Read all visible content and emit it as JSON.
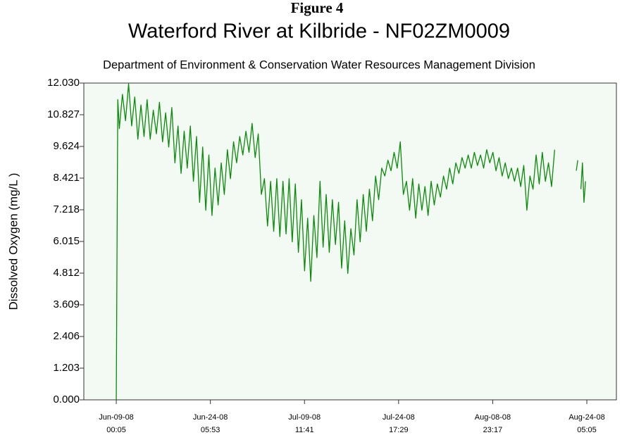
{
  "chart_data": {
    "type": "line",
    "figure_label": "Figure 4",
    "title": "Waterford River at Kilbride - NF02ZM0009",
    "subtitle": "Department of Environment & Conservation Water Resources Management Division",
    "y_label": "Dissolved Oxygen (mg/L )",
    "xlim": [
      "2008-06-03T18:00",
      "2008-08-29T00:00"
    ],
    "xticks": [
      {
        "value": "2008-06-09T00:05",
        "label": [
          "Jun-09-08",
          "00:05"
        ]
      },
      {
        "value": "2008-06-24T05:53",
        "label": [
          "Jun-24-08",
          "05:53"
        ]
      },
      {
        "value": "2008-07-09T11:41",
        "label": [
          "Jul-09-08",
          "11:41"
        ]
      },
      {
        "value": "2008-07-24T17:29",
        "label": [
          "Jul-24-08",
          "17:29"
        ]
      },
      {
        "value": "2008-08-08T23:17",
        "label": [
          "Aug-08-08",
          "23:17"
        ]
      },
      {
        "value": "2008-08-24T05:05",
        "label": [
          "Aug-24-08",
          "05:05"
        ]
      }
    ],
    "ylim": [
      0,
      12.03
    ],
    "yticks": [
      {
        "value": 0,
        "label": "0.000"
      },
      {
        "value": 1.203,
        "label": "1.203"
      },
      {
        "value": 2.406,
        "label": "2.406"
      },
      {
        "value": 3.609,
        "label": "3.609"
      },
      {
        "value": 4.812,
        "label": "4.812"
      },
      {
        "value": 6.015,
        "label": "6.015"
      },
      {
        "value": 7.218,
        "label": "7.218"
      },
      {
        "value": 8.421,
        "label": "8.421"
      },
      {
        "value": 9.624,
        "label": "9.624"
      },
      {
        "value": 10.827,
        "label": "10.827"
      },
      {
        "value": 12.03,
        "label": "12.030"
      }
    ],
    "x": [
      "2008-06-09T00:05",
      "2008-06-09T06:00",
      "2008-06-09T12:00",
      "2008-06-10T00:00",
      "2008-06-10T12:00",
      "2008-06-11T00:00",
      "2008-06-11T12:00",
      "2008-06-12T00:00",
      "2008-06-12T12:00",
      "2008-06-13T00:00",
      "2008-06-13T12:00",
      "2008-06-14T00:00",
      "2008-06-14T12:00",
      "2008-06-15T00:00",
      "2008-06-15T12:00",
      "2008-06-16T00:00",
      "2008-06-16T12:00",
      "2008-06-17T00:00",
      "2008-06-17T12:00",
      "2008-06-18T00:00",
      "2008-06-18T12:00",
      "2008-06-19T00:00",
      "2008-06-19T12:00",
      "2008-06-20T00:00",
      "2008-06-20T12:00",
      "2008-06-21T00:00",
      "2008-06-21T12:00",
      "2008-06-22T00:00",
      "2008-06-22T12:00",
      "2008-06-23T00:00",
      "2008-06-23T12:00",
      "2008-06-24T00:00",
      "2008-06-24T12:00",
      "2008-06-25T00:00",
      "2008-06-25T12:00",
      "2008-06-26T00:00",
      "2008-06-26T12:00",
      "2008-06-27T00:00",
      "2008-06-27T12:00",
      "2008-06-28T00:00",
      "2008-06-28T12:00",
      "2008-06-29T00:00",
      "2008-06-29T12:00",
      "2008-06-30T00:00",
      "2008-06-30T12:00",
      "2008-07-01T00:00",
      "2008-07-01T12:00",
      "2008-07-02T00:00",
      "2008-07-02T12:00",
      "2008-07-03T00:00",
      "2008-07-03T12:00",
      "2008-07-04T00:00",
      "2008-07-04T12:00",
      "2008-07-05T00:00",
      "2008-07-05T12:00",
      "2008-07-06T00:00",
      "2008-07-06T12:00",
      "2008-07-07T00:00",
      "2008-07-07T12:00",
      "2008-07-08T00:00",
      "2008-07-08T12:00",
      "2008-07-09T00:00",
      "2008-07-09T12:00",
      "2008-07-10T00:00",
      "2008-07-10T12:00",
      "2008-07-11T00:00",
      "2008-07-11T12:00",
      "2008-07-12T00:00",
      "2008-07-12T12:00",
      "2008-07-13T00:00",
      "2008-07-13T12:00",
      "2008-07-14T00:00",
      "2008-07-14T12:00",
      "2008-07-15T00:00",
      "2008-07-15T12:00",
      "2008-07-16T00:00",
      "2008-07-16T12:00",
      "2008-07-17T00:00",
      "2008-07-17T12:00",
      "2008-07-18T00:00",
      "2008-07-18T12:00",
      "2008-07-19T00:00",
      "2008-07-19T12:00",
      "2008-07-20T00:00",
      "2008-07-20T12:00",
      "2008-07-21T00:00",
      "2008-07-21T12:00",
      "2008-07-22T00:00",
      "2008-07-22T12:00",
      "2008-07-23T00:00",
      "2008-07-23T12:00",
      "2008-07-24T00:00",
      "2008-07-24T12:00",
      "2008-07-25T00:00",
      "2008-07-25T12:00",
      "2008-07-26T00:00",
      "2008-07-26T12:00",
      "2008-07-27T00:00",
      "2008-07-27T12:00",
      "2008-07-28T00:00",
      "2008-07-28T12:00",
      "2008-07-29T00:00",
      "2008-07-29T12:00",
      "2008-07-30T00:00",
      "2008-07-30T12:00",
      "2008-07-31T00:00",
      "2008-07-31T12:00",
      "2008-08-01T00:00",
      "2008-08-01T12:00",
      "2008-08-02T00:00",
      "2008-08-02T12:00",
      "2008-08-03T00:00",
      "2008-08-03T12:00",
      "2008-08-04T00:00",
      "2008-08-04T12:00",
      "2008-08-05T00:00",
      "2008-08-05T12:00",
      "2008-08-06T00:00",
      "2008-08-06T12:00",
      "2008-08-07T00:00",
      "2008-08-07T12:00",
      "2008-08-08T00:00",
      "2008-08-08T12:00",
      "2008-08-09T00:00",
      "2008-08-09T12:00",
      "2008-08-10T00:00",
      "2008-08-10T12:00",
      "2008-08-11T00:00",
      "2008-08-11T12:00",
      "2008-08-12T00:00",
      "2008-08-12T12:00",
      "2008-08-13T00:00",
      "2008-08-13T12:00",
      "2008-08-14T00:00",
      "2008-08-14T12:00",
      "2008-08-15T00:00",
      "2008-08-15T12:00",
      "2008-08-16T00:00",
      "2008-08-16T12:00",
      "2008-08-17T00:00",
      "2008-08-17T12:00",
      "2008-08-18T00:00",
      "2008-08-18T12:00",
      "2008-08-19T00:00",
      "2008-08-19T12:00",
      "2008-08-22T12:00",
      "2008-08-22T18:00",
      "2008-08-23T00:00",
      "2008-08-23T06:00",
      "2008-08-23T12:00",
      "2008-08-23T18:00",
      "2008-08-24T00:00"
    ],
    "series": [
      {
        "name": "Dissolved Oxygen",
        "color": "#0a8a0a",
        "values": [
          0,
          11.4,
          10.3,
          11.6,
          10.6,
          12.0,
          10.4,
          11.5,
          9.9,
          11.2,
          10.0,
          11.4,
          9.9,
          11.0,
          10.1,
          11.3,
          9.8,
          10.9,
          9.6,
          11.1,
          9.0,
          10.4,
          8.6,
          10.2,
          8.8,
          10.4,
          8.3,
          10.0,
          7.5,
          9.6,
          7.2,
          9.3,
          7.0,
          8.8,
          7.4,
          9.0,
          7.8,
          9.5,
          8.4,
          9.8,
          9.0,
          10.0,
          9.3,
          10.2,
          9.4,
          10.5,
          9.2,
          10.1,
          7.8,
          8.4,
          6.6,
          8.3,
          6.4,
          8.4,
          6.2,
          8.3,
          6.3,
          8.4,
          6.0,
          8.2,
          5.6,
          7.6,
          4.9,
          6.9,
          4.5,
          7.0,
          5.4,
          8.3,
          5.8,
          7.8,
          5.6,
          7.6,
          5.9,
          7.5,
          5.0,
          6.8,
          4.8,
          6.5,
          5.5,
          7.6,
          6.0,
          7.8,
          6.4,
          8.0,
          6.8,
          8.5,
          7.6,
          8.8,
          8.5,
          9.1,
          8.7,
          9.4,
          8.8,
          9.8,
          7.8,
          8.3,
          7.2,
          8.4,
          6.9,
          8.2,
          7.2,
          8.1,
          7.0,
          8.3,
          7.4,
          8.2,
          7.7,
          8.5,
          8.0,
          8.8,
          8.2,
          9.0,
          8.6,
          9.2,
          8.8,
          9.3,
          8.8,
          9.4,
          8.9,
          9.3,
          8.8,
          9.5,
          9.0,
          9.4,
          8.7,
          9.2,
          8.5,
          9.0,
          8.4,
          8.8,
          8.3,
          8.8,
          8.1,
          8.9,
          7.2,
          8.5,
          8.0,
          9.3,
          8.2,
          9.4,
          8.3,
          9.0,
          8.1,
          9.5,
          null,
          8.7,
          9.1,
          null,
          8.0,
          9.0,
          7.5,
          8.3
        ]
      }
    ]
  }
}
